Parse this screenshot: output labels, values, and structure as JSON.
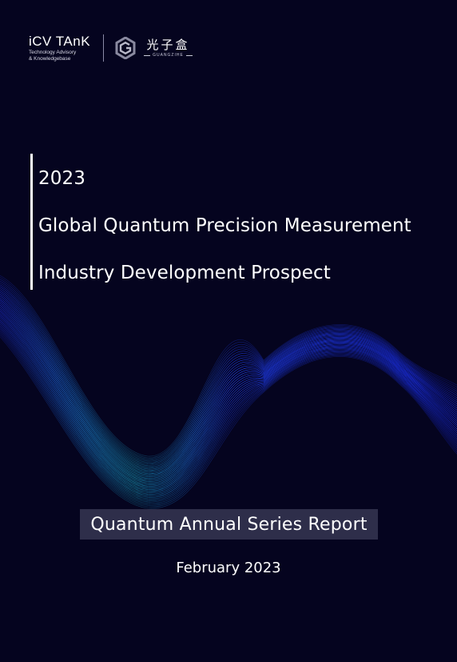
{
  "header": {
    "brand1_name": "iCV TAnK",
    "brand1_sub_line1": "Technology Advisory",
    "brand1_sub_line2": "& Knowledgebase",
    "brand2_cn": "光子盒",
    "brand2_en": "GUANGZIHE"
  },
  "title": {
    "year": "2023",
    "line1": "Global Quantum Precision Measurement",
    "line2": "Industry Development Prospect"
  },
  "series_label": "Quantum Annual Series Report",
  "date": "February 2023",
  "colors": {
    "background": "#05041f",
    "wave_blue": "#1a3dff",
    "wave_cyan": "#1ec8e6",
    "series_box": "#2e2e4a"
  }
}
